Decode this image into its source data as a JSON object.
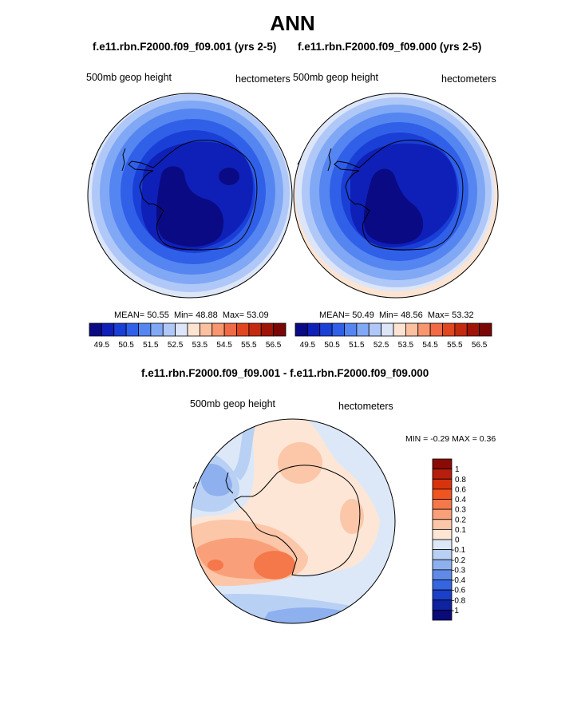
{
  "main_title": "ANN",
  "panels": [
    {
      "title": "f.e11.rbn.F2000.f09_f09.001 (yrs 2-5)",
      "left_label": "500mb geop height",
      "right_label": "hectometers",
      "stats": {
        "mean_label": "MEAN=",
        "mean": "50.55",
        "min_label": "Min=",
        "min": "48.88",
        "max_label": "Max=",
        "max": "53.09"
      }
    },
    {
      "title": "f.e11.rbn.F2000.f09_f09.000 (yrs 2-5)",
      "left_label": "500mb geop height",
      "right_label": "hectometers",
      "stats": {
        "mean_label": "MEAN=",
        "mean": "50.49",
        "min_label": "Min=",
        "min": "48.56",
        "max_label": "Max=",
        "max": "53.32"
      }
    }
  ],
  "diff": {
    "title": "f.e11.rbn.F2000.f09_f09.001 - f.e11.rbn.F2000.f09_f09.000",
    "left_label": "500mb geop height",
    "right_label": "hectometers",
    "min_max_text": "MIN =  -0.29 MAX =   0.36"
  },
  "colorbar_horizontal": {
    "tick_labels": [
      "49.5",
      "50.5",
      "51.5",
      "52.5",
      "53.5",
      "54.5",
      "55.5",
      "56.5"
    ],
    "colors": [
      "#0a0a85",
      "#0f20b8",
      "#1a3fd6",
      "#3060e8",
      "#5585f0",
      "#80a8f5",
      "#b0c8f8",
      "#dce6f8",
      "#fde4d2",
      "#fbc0a0",
      "#f7966f",
      "#f06a45",
      "#e04620",
      "#c42a10",
      "#a01408",
      "#7a0606"
    ]
  },
  "colorbar_vertical": {
    "tick_labels": [
      "1",
      "0.8",
      "0.6",
      "0.4",
      "0.3",
      "0.2",
      "0.1",
      "0",
      "-0.1",
      "-0.2",
      "-0.3",
      "-0.4",
      "-0.6",
      "-0.8",
      "-1"
    ],
    "colors": [
      "#8a0a06",
      "#b81e0c",
      "#d8330f",
      "#f05420",
      "#f5784a",
      "#f9a07a",
      "#fcc6a8",
      "#fde6d6",
      "#dce8f8",
      "#b8d0f4",
      "#8fb0ee",
      "#5f8ae8",
      "#3565e0",
      "#1a3fc8",
      "#0f22a0",
      "#0a0a78"
    ]
  },
  "chart_data": [
    {
      "type": "heatmap",
      "projection": "south-polar-stereographic",
      "title": "f.e11.rbn.F2000.f09_f09.001 (yrs 2-5)",
      "variable": "500mb geop height",
      "units": "hectometers",
      "mean": 50.55,
      "min": 48.88,
      "max": 53.09,
      "contour_levels": [
        49.5,
        50,
        50.5,
        51,
        51.5,
        52,
        52.5,
        53,
        53.5,
        54,
        54.5,
        55,
        55.5,
        56,
        56.5
      ]
    },
    {
      "type": "heatmap",
      "projection": "south-polar-stereographic",
      "title": "f.e11.rbn.F2000.f09_f09.000 (yrs 2-5)",
      "variable": "500mb geop height",
      "units": "hectometers",
      "mean": 50.49,
      "min": 48.56,
      "max": 53.32,
      "contour_levels": [
        49.5,
        50,
        50.5,
        51,
        51.5,
        52,
        52.5,
        53,
        53.5,
        54,
        54.5,
        55,
        55.5,
        56,
        56.5
      ]
    },
    {
      "type": "heatmap",
      "projection": "south-polar-stereographic",
      "title": "f.e11.rbn.F2000.f09_f09.001 - f.e11.rbn.F2000.f09_f09.000",
      "variable": "500mb geop height",
      "units": "hectometers",
      "min": -0.29,
      "max": 0.36,
      "contour_levels": [
        -1,
        -0.8,
        -0.6,
        -0.4,
        -0.3,
        -0.2,
        -0.1,
        0,
        0.1,
        0.2,
        0.3,
        0.4,
        0.6,
        0.8,
        1
      ]
    }
  ]
}
